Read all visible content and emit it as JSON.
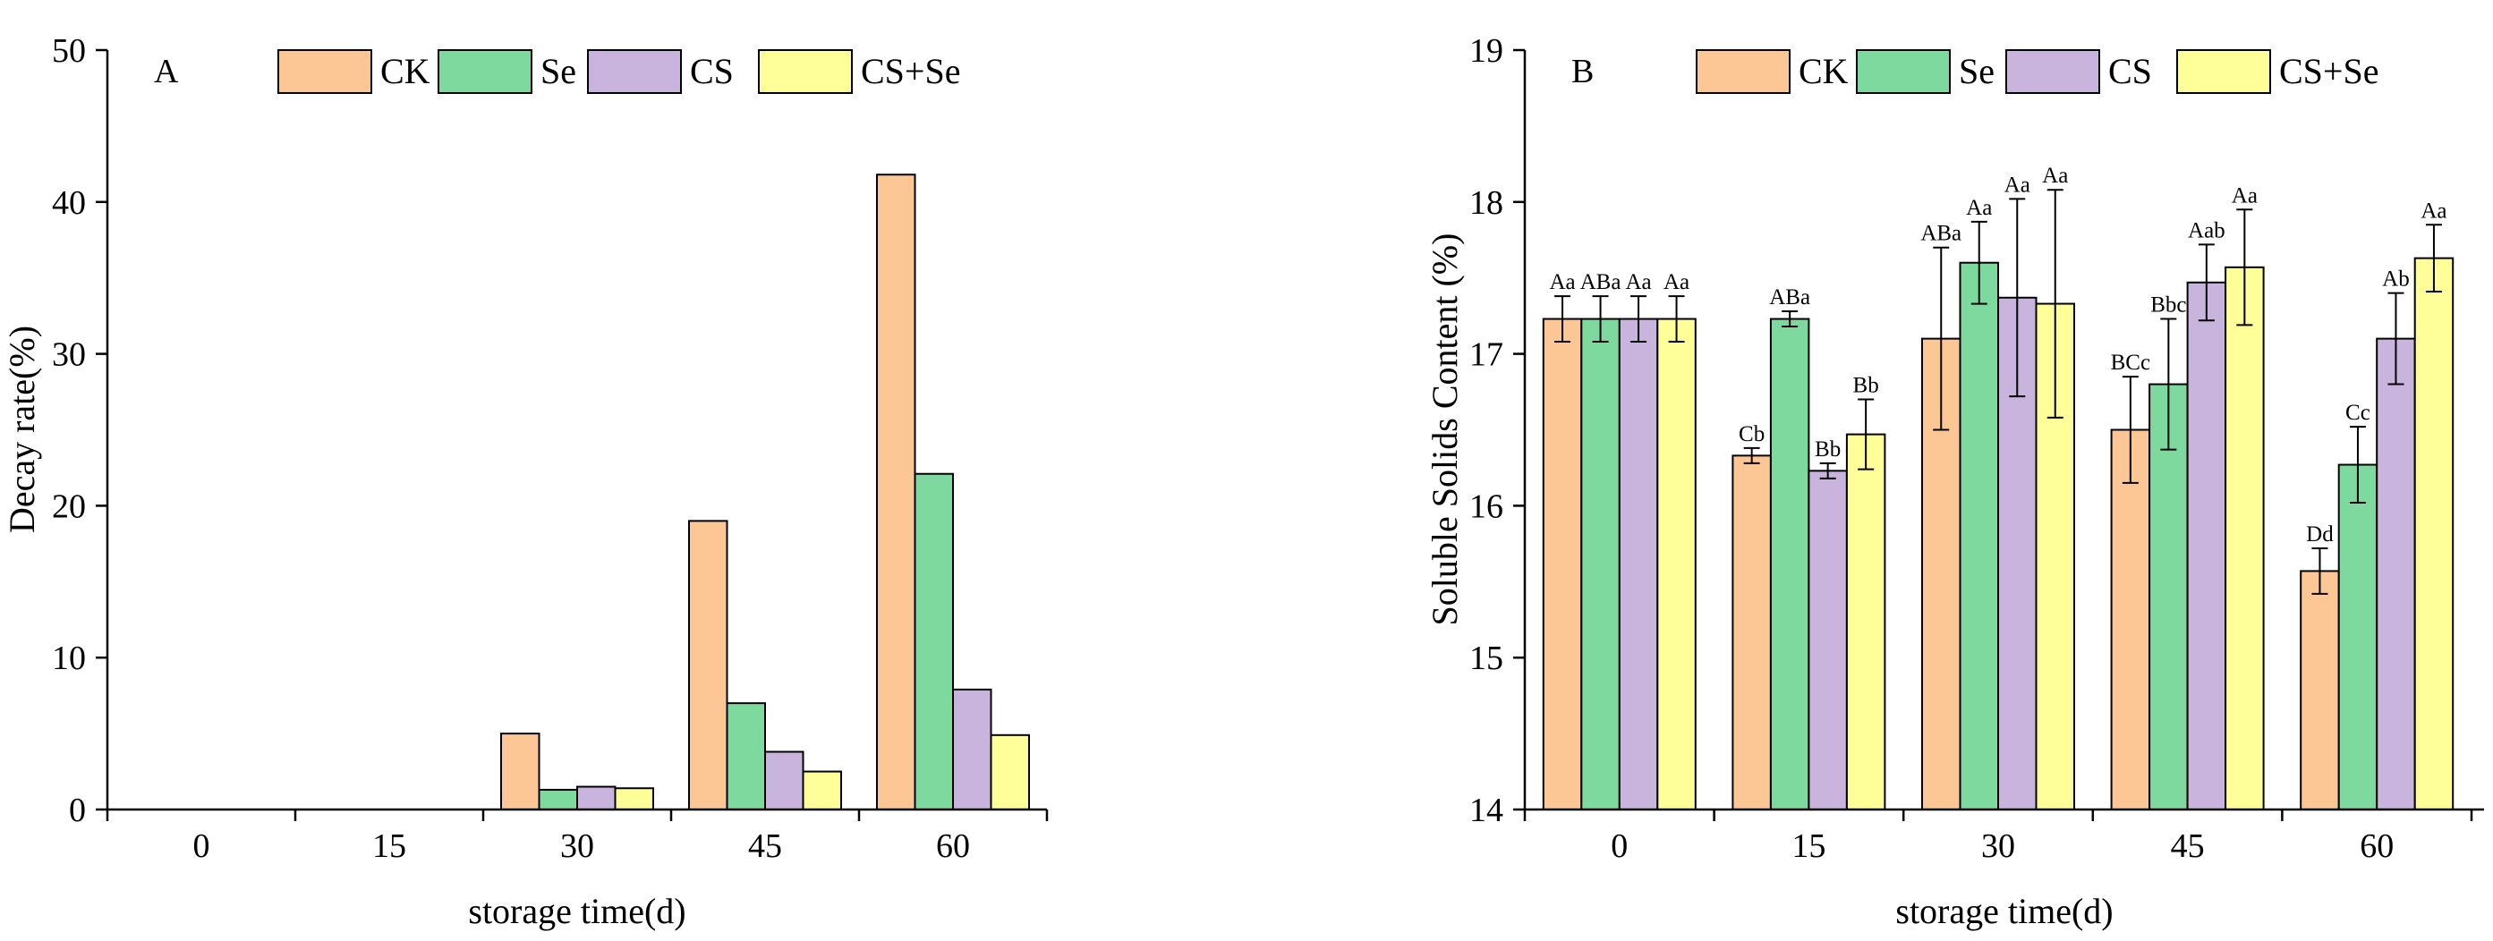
{
  "series_colors": {
    "CK": "#fdc795",
    "Se": "#7ed99e",
    "CS": "#c8b4dc",
    "CS+Se": "#ffff99"
  },
  "chart_data": [
    {
      "type": "bar",
      "panel": "A",
      "xlabel": "storage time(d)",
      "ylabel": "Decay rate(%)",
      "categories": [
        "0",
        "15",
        "30",
        "45",
        "60"
      ],
      "ylim": [
        0,
        50
      ],
      "yticks": [
        0,
        10,
        20,
        30,
        40,
        50
      ],
      "legend_position": "top",
      "series": [
        {
          "name": "CK",
          "values": [
            0,
            0,
            5.0,
            19.0,
            41.8
          ]
        },
        {
          "name": "Se",
          "values": [
            0,
            0,
            1.3,
            7.0,
            22.1
          ]
        },
        {
          "name": "CS",
          "values": [
            0,
            0,
            1.5,
            3.8,
            7.9
          ]
        },
        {
          "name": "CS+Se",
          "values": [
            0,
            0,
            1.4,
            2.5,
            4.9
          ]
        }
      ]
    },
    {
      "type": "bar",
      "panel": "B",
      "xlabel": "storage time(d)",
      "ylabel": "Soluble Solids Content (%)",
      "categories": [
        "0",
        "15",
        "30",
        "45",
        "60"
      ],
      "ylim": [
        14,
        19
      ],
      "yticks": [
        14,
        15,
        16,
        17,
        18,
        19
      ],
      "legend_position": "top",
      "series": [
        {
          "name": "CK",
          "values": [
            17.23,
            16.33,
            17.1,
            16.5,
            15.57
          ],
          "errors": [
            0.15,
            0.05,
            0.6,
            0.35,
            0.15
          ],
          "labels": [
            "Aa",
            "Cb",
            "ABa",
            "BCc",
            "Dd"
          ]
        },
        {
          "name": "Se",
          "values": [
            17.23,
            17.23,
            17.6,
            16.8,
            16.27
          ],
          "errors": [
            0.15,
            0.05,
            0.27,
            0.43,
            0.25
          ],
          "labels": [
            "ABa",
            "ABa",
            "Aa",
            "Bbc",
            "Cc"
          ]
        },
        {
          "name": "CS",
          "values": [
            17.23,
            16.23,
            17.37,
            17.47,
            17.1
          ],
          "errors": [
            0.15,
            0.05,
            0.65,
            0.25,
            0.3
          ],
          "labels": [
            "Aa",
            "Bb",
            "Aa",
            "Aab",
            "Ab"
          ]
        },
        {
          "name": "CS+Se",
          "values": [
            17.23,
            16.47,
            17.33,
            17.57,
            17.63
          ],
          "errors": [
            0.15,
            0.23,
            0.75,
            0.38,
            0.22
          ],
          "labels": [
            "Aa",
            "Bb",
            "Aa",
            "Aa",
            "Aa"
          ]
        }
      ]
    }
  ]
}
